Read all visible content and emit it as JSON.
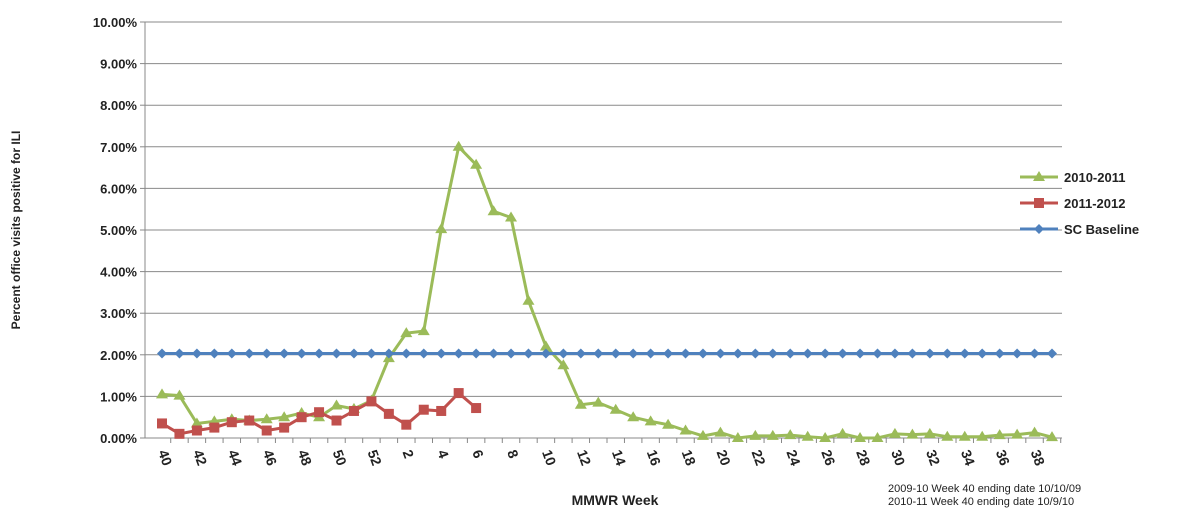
{
  "chart_data": {
    "type": "line",
    "y_label": "Percent office visits positive for ILI",
    "x_label": "MMWR Week",
    "notes": [
      "2009-10  Week 40 ending date 10/10/09",
      "2010-11  Week 40 ending date 10/9/10"
    ],
    "categories": [
      "40",
      null,
      "42",
      null,
      "44",
      null,
      "46",
      null,
      "48",
      null,
      "50",
      null,
      "52",
      null,
      "2",
      null,
      "4",
      null,
      "6",
      null,
      "8",
      null,
      "10",
      null,
      "12",
      null,
      "14",
      null,
      "16",
      null,
      "18",
      null,
      "20",
      null,
      "22",
      null,
      "24",
      null,
      "26",
      null,
      "28",
      null,
      "30",
      null,
      "32",
      null,
      "34",
      null,
      "36",
      null,
      "38",
      null
    ],
    "series": [
      {
        "name": "2010-2011",
        "color": "#9bbb59",
        "marker": "triangle",
        "values": [
          1.05,
          1.02,
          0.35,
          0.4,
          0.45,
          0.42,
          0.45,
          0.5,
          0.6,
          0.5,
          0.78,
          0.7,
          0.9,
          1.92,
          2.52,
          2.57,
          5.02,
          7.0,
          6.57,
          5.45,
          5.3,
          3.3,
          2.2,
          1.75,
          0.8,
          0.85,
          0.68,
          0.5,
          0.4,
          0.32,
          0.18,
          0.05,
          0.13,
          0.0,
          0.05,
          0.05,
          0.07,
          0.03,
          0.0,
          0.1,
          0.0,
          0.0,
          0.1,
          0.08,
          0.1,
          0.03,
          0.03,
          0.03,
          0.07,
          0.08,
          0.13,
          0.02
        ]
      },
      {
        "name": "2011-2012",
        "color": "#c0504d",
        "marker": "square",
        "values": [
          0.35,
          0.1,
          0.18,
          0.25,
          0.38,
          0.42,
          0.18,
          0.25,
          0.5,
          0.62,
          0.42,
          0.65,
          0.88,
          0.58,
          0.32,
          0.68,
          0.65,
          1.08,
          0.72,
          null,
          null,
          null,
          null,
          null,
          null,
          null,
          null,
          null,
          null,
          null,
          null,
          null,
          null,
          null,
          null,
          null,
          null,
          null,
          null,
          null,
          null,
          null,
          null,
          null,
          null,
          null,
          null,
          null,
          null,
          null,
          null,
          null
        ]
      },
      {
        "name": "SC Baseline",
        "color": "#4f81bd",
        "marker": "diamond",
        "values": [
          2.03,
          2.03,
          2.03,
          2.03,
          2.03,
          2.03,
          2.03,
          2.03,
          2.03,
          2.03,
          2.03,
          2.03,
          2.03,
          2.03,
          2.03,
          2.03,
          2.03,
          2.03,
          2.03,
          2.03,
          2.03,
          2.03,
          2.03,
          2.03,
          2.03,
          2.03,
          2.03,
          2.03,
          2.03,
          2.03,
          2.03,
          2.03,
          2.03,
          2.03,
          2.03,
          2.03,
          2.03,
          2.03,
          2.03,
          2.03,
          2.03,
          2.03,
          2.03,
          2.03,
          2.03,
          2.03,
          2.03,
          2.03,
          2.03,
          2.03,
          2.03,
          2.03
        ]
      }
    ],
    "ylim": [
      0,
      10
    ],
    "yticks": [
      {
        "value": 0,
        "label": "0.00%"
      },
      {
        "value": 1,
        "label": "1.00%"
      },
      {
        "value": 2,
        "label": "2.00%"
      },
      {
        "value": 3,
        "label": "3.00%"
      },
      {
        "value": 4,
        "label": "4.00%"
      },
      {
        "value": 5,
        "label": "5.00%"
      },
      {
        "value": 6,
        "label": "6.00%"
      },
      {
        "value": 7,
        "label": "7.00%"
      },
      {
        "value": 8,
        "label": "8.00%"
      },
      {
        "value": 9,
        "label": "9.00%"
      },
      {
        "value": 10,
        "label": "10.00%"
      }
    ],
    "grid": true,
    "legend": "right"
  }
}
